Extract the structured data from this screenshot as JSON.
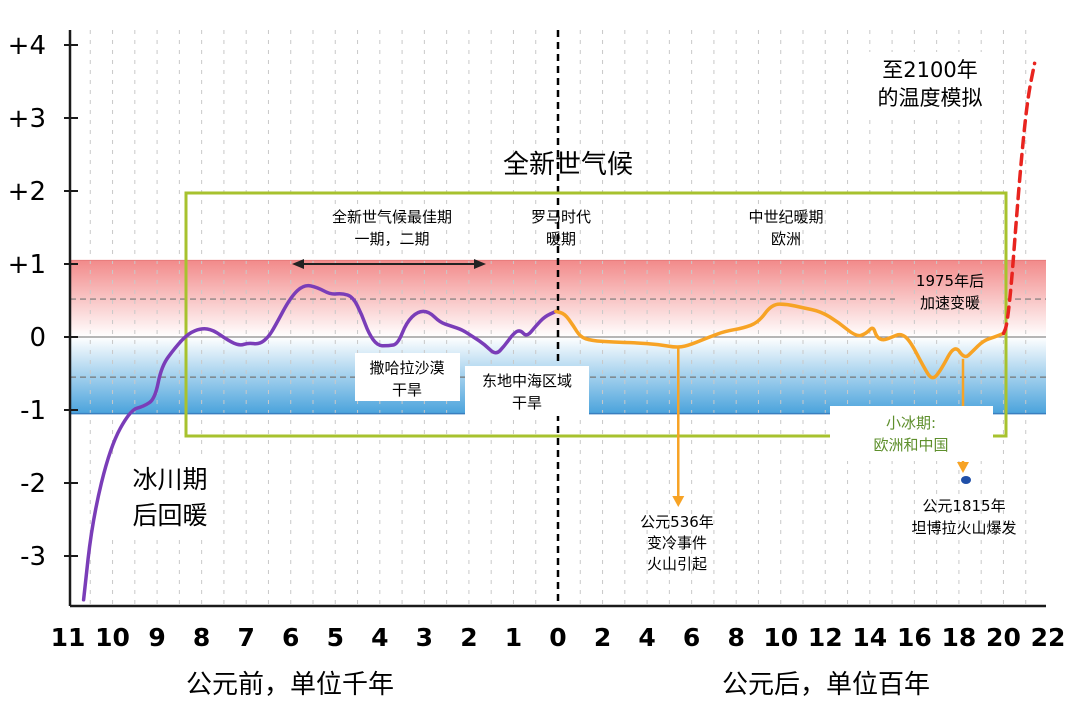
{
  "chart_data": {
    "type": "line",
    "title": "全新世气候",
    "y_ticks": [
      "+4",
      "+3",
      "+2",
      "+1",
      "0",
      "-1",
      "-2",
      "-3"
    ],
    "x_ticks": [
      "11",
      "10",
      "9",
      "8",
      "7",
      "6",
      "5",
      "4",
      "3",
      "2",
      "1",
      "0",
      "2",
      "4",
      "6",
      "8",
      "10",
      "12",
      "14",
      "16",
      "18",
      "20",
      "22"
    ],
    "xlabel_bc": "公元前，单位千年",
    "xlabel_ad": "公元后，单位百年",
    "ylim": [
      -3.6,
      4.3
    ],
    "bands": {
      "warm": [
        0,
        1.05
      ],
      "cool": [
        -1.05,
        0
      ]
    },
    "series": [
      {
        "color": "#7a3db8",
        "points": [
          [
            -10.65,
            -3.6
          ],
          [
            -10.45,
            -2.5
          ],
          [
            -10.05,
            -1.5
          ],
          [
            -9.6,
            -1.0
          ],
          [
            -9.3,
            -0.95
          ],
          [
            -9.05,
            -0.85
          ],
          [
            -8.9,
            -0.4
          ],
          [
            -8.6,
            -0.15
          ],
          [
            -8.3,
            0.05
          ],
          [
            -8.0,
            0.12
          ],
          [
            -7.75,
            0.1
          ],
          [
            -7.4,
            -0.05
          ],
          [
            -7.15,
            -0.12
          ],
          [
            -6.95,
            -0.08
          ],
          [
            -6.7,
            -0.1
          ],
          [
            -6.5,
            0.0
          ],
          [
            -6.35,
            0.15
          ],
          [
            -6.0,
            0.55
          ],
          [
            -5.7,
            0.72
          ],
          [
            -5.4,
            0.68
          ],
          [
            -5.1,
            0.58
          ],
          [
            -4.85,
            0.6
          ],
          [
            -4.6,
            0.55
          ],
          [
            -4.4,
            0.3
          ],
          [
            -4.25,
            0.05
          ],
          [
            -4.05,
            -0.12
          ],
          [
            -3.8,
            -0.12
          ],
          [
            -3.6,
            -0.1
          ],
          [
            -3.4,
            0.2
          ],
          [
            -3.15,
            0.35
          ],
          [
            -2.9,
            0.35
          ],
          [
            -2.65,
            0.2
          ],
          [
            -2.4,
            0.15
          ],
          [
            -2.15,
            0.1
          ],
          [
            -1.9,
            0.0
          ],
          [
            -1.65,
            -0.1
          ],
          [
            -1.4,
            -0.25
          ],
          [
            -1.2,
            -0.12
          ],
          [
            -1.0,
            0.05
          ],
          [
            -0.85,
            0.1
          ],
          [
            -0.7,
            0.0
          ],
          [
            -0.5,
            0.15
          ],
          [
            -0.3,
            0.28
          ],
          [
            -0.05,
            0.35
          ]
        ]
      },
      {
        "color": "#f7a325",
        "points": [
          [
            -0.05,
            0.35
          ],
          [
            0.3,
            0.32
          ],
          [
            0.7,
            0.15
          ],
          [
            1.0,
            0.0
          ],
          [
            1.5,
            -0.05
          ],
          [
            2.5,
            -0.07
          ],
          [
            3.5,
            -0.08
          ],
          [
            4.5,
            -0.1
          ],
          [
            5.4,
            -0.15
          ],
          [
            6.0,
            -0.1
          ],
          [
            6.8,
            0.0
          ],
          [
            7.5,
            0.08
          ],
          [
            8.3,
            0.12
          ],
          [
            9.0,
            0.2
          ],
          [
            9.6,
            0.45
          ],
          [
            10.3,
            0.45
          ],
          [
            11.0,
            0.4
          ],
          [
            11.8,
            0.35
          ],
          [
            12.6,
            0.2
          ],
          [
            13.4,
            0.0
          ],
          [
            13.85,
            0.05
          ],
          [
            14.15,
            0.15
          ],
          [
            14.3,
            0.0
          ],
          [
            14.6,
            -0.05
          ],
          [
            15.0,
            0.0
          ],
          [
            15.4,
            0.05
          ],
          [
            15.8,
            -0.05
          ],
          [
            16.4,
            -0.4
          ],
          [
            16.8,
            -0.6
          ],
          [
            17.2,
            -0.45
          ],
          [
            17.8,
            -0.1
          ],
          [
            18.25,
            -0.3
          ],
          [
            18.6,
            -0.2
          ],
          [
            19.1,
            -0.05
          ],
          [
            19.6,
            0.0
          ],
          [
            20.0,
            0.05
          ]
        ]
      },
      {
        "color": "#e8241f",
        "points": [
          [
            20.0,
            0.05
          ],
          [
            20.15,
            0.15
          ],
          [
            20.35,
            0.7
          ],
          [
            20.55,
            1.5
          ],
          [
            20.85,
            2.6
          ],
          [
            21.1,
            3.3
          ],
          [
            21.4,
            3.75
          ]
        ]
      }
    ],
    "annotations": {
      "glacial": [
        "冰川期",
        "后回暖"
      ],
      "optimum": [
        "全新世气候最佳期",
        "一期，二期"
      ],
      "roman": [
        "罗马时代",
        "暖期"
      ],
      "medieval": [
        "中世纪暖期",
        "欧洲"
      ],
      "sahara": [
        "撒哈拉沙漠",
        "干旱"
      ],
      "med": [
        "东地中海区域",
        "干旱"
      ],
      "ev536": [
        "公元536年",
        "变冷事件",
        "火山引起"
      ],
      "post1975": [
        "1975年后",
        "加速变暖"
      ],
      "lia": [
        "小冰期:",
        "欧洲和中国"
      ],
      "tambora": [
        "公元1815年",
        "坦博拉火山爆发"
      ],
      "to2100": [
        "至2100年",
        "的温度模拟"
      ]
    }
  }
}
